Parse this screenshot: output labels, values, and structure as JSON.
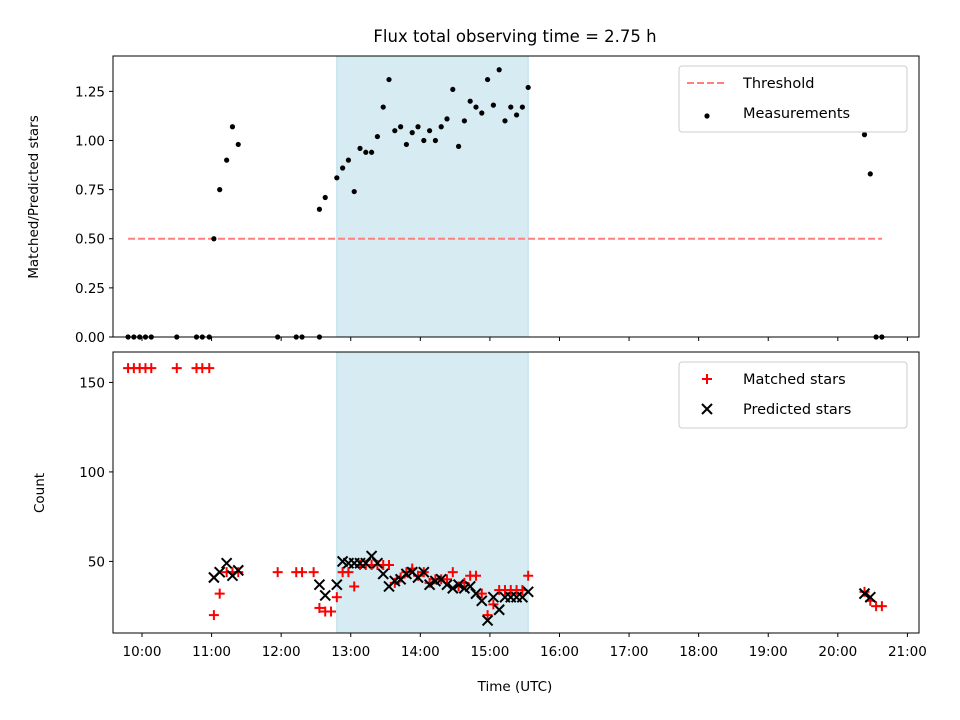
{
  "figure": {
    "title": "Flux total observing time = 2.75 h"
  },
  "chart_data": [
    {
      "type": "scatter",
      "panel": "top",
      "ylabel": "Matched/Predicted stars",
      "xlim": [
        "09:35",
        "21:10"
      ],
      "ylim": [
        0,
        1.43
      ],
      "yticks": [
        0.0,
        0.25,
        0.5,
        0.75,
        1.0,
        1.25
      ],
      "ytick_labels": [
        "0.00",
        "0.25",
        "0.50",
        "0.75",
        "1.00",
        "1.25"
      ],
      "highlight_span": [
        "12:48",
        "15:33"
      ],
      "highlight_color": "#add8e6",
      "threshold": {
        "value": 0.5,
        "x_range": [
          "09:48",
          "20:38"
        ],
        "color": "#ff7f7f",
        "label": "Threshold"
      },
      "legend": {
        "position": "top-right",
        "entries": [
          "Threshold",
          "Measurements"
        ]
      },
      "series": [
        {
          "name": "Measurements",
          "color": "#000000",
          "points": [
            [
              "09:48",
              0
            ],
            [
              "09:53",
              0
            ],
            [
              "09:58",
              0
            ],
            [
              "10:03",
              0
            ],
            [
              "10:08",
              0
            ],
            [
              "10:30",
              0
            ],
            [
              "10:47",
              0
            ],
            [
              "10:52",
              0
            ],
            [
              "10:58",
              0
            ],
            [
              "11:02",
              0.5
            ],
            [
              "11:07",
              0.75
            ],
            [
              "11:13",
              0.9
            ],
            [
              "11:18",
              1.07
            ],
            [
              "11:23",
              0.98
            ],
            [
              "11:57",
              0
            ],
            [
              "12:13",
              0
            ],
            [
              "12:18",
              0
            ],
            [
              "12:33",
              0
            ],
            [
              "12:33",
              0.65
            ],
            [
              "12:38",
              0.71
            ],
            [
              "12:48",
              0.81
            ],
            [
              "12:53",
              0.86
            ],
            [
              "12:58",
              0.9
            ],
            [
              "13:03",
              0.74
            ],
            [
              "13:08",
              0.96
            ],
            [
              "13:13",
              0.94
            ],
            [
              "13:18",
              0.94
            ],
            [
              "13:23",
              1.02
            ],
            [
              "13:28",
              1.17
            ],
            [
              "13:33",
              1.31
            ],
            [
              "13:38",
              1.05
            ],
            [
              "13:43",
              1.07
            ],
            [
              "13:48",
              0.98
            ],
            [
              "13:53",
              1.04
            ],
            [
              "13:58",
              1.07
            ],
            [
              "14:03",
              1.0
            ],
            [
              "14:08",
              1.05
            ],
            [
              "14:13",
              1.0
            ],
            [
              "14:18",
              1.07
            ],
            [
              "14:23",
              1.11
            ],
            [
              "14:28",
              1.26
            ],
            [
              "14:33",
              0.97
            ],
            [
              "14:38",
              1.1
            ],
            [
              "14:43",
              1.2
            ],
            [
              "14:48",
              1.17
            ],
            [
              "14:53",
              1.14
            ],
            [
              "14:58",
              1.31
            ],
            [
              "15:03",
              1.18
            ],
            [
              "15:08",
              1.36
            ],
            [
              "15:13",
              1.1
            ],
            [
              "15:18",
              1.17
            ],
            [
              "15:23",
              1.13
            ],
            [
              "15:28",
              1.17
            ],
            [
              "15:33",
              1.27
            ],
            [
              "20:23",
              1.03
            ],
            [
              "20:28",
              0.83
            ],
            [
              "20:33",
              0
            ],
            [
              "20:38",
              0
            ]
          ]
        }
      ]
    },
    {
      "type": "scatter",
      "panel": "bottom",
      "xlabel": "Time (UTC)",
      "ylabel": "Count",
      "xlim": [
        "09:35",
        "21:10"
      ],
      "ylim": [
        10,
        167
      ],
      "xticks": [
        "10:00",
        "11:00",
        "12:00",
        "13:00",
        "14:00",
        "15:00",
        "16:00",
        "17:00",
        "18:00",
        "19:00",
        "20:00",
        "21:00"
      ],
      "yticks": [
        50,
        100,
        150
      ],
      "ytick_labels": [
        "50",
        "100",
        "150"
      ],
      "highlight_span": [
        "12:48",
        "15:33"
      ],
      "highlight_color": "#add8e6",
      "legend": {
        "position": "top-right",
        "entries": [
          "Matched stars",
          "Predicted stars"
        ]
      },
      "series": [
        {
          "name": "Matched stars",
          "marker": "plus",
          "color": "#ff0000",
          "points": [
            [
              "09:48",
              158
            ],
            [
              "09:53",
              158
            ],
            [
              "09:58",
              158
            ],
            [
              "10:03",
              158
            ],
            [
              "10:08",
              158
            ],
            [
              "10:30",
              158
            ],
            [
              "10:47",
              158
            ],
            [
              "10:52",
              158
            ],
            [
              "10:58",
              158
            ],
            [
              "11:02",
              20
            ],
            [
              "11:07",
              32
            ],
            [
              "11:13",
              44
            ],
            [
              "11:18",
              44
            ],
            [
              "11:23",
              44
            ],
            [
              "11:57",
              44
            ],
            [
              "12:13",
              44
            ],
            [
              "12:18",
              44
            ],
            [
              "12:28",
              44
            ],
            [
              "12:33",
              24
            ],
            [
              "12:38",
              22
            ],
            [
              "12:43",
              22
            ],
            [
              "12:48",
              30
            ],
            [
              "12:53",
              44
            ],
            [
              "12:58",
              44
            ],
            [
              "13:03",
              36
            ],
            [
              "13:08",
              48
            ],
            [
              "13:13",
              48
            ],
            [
              "13:18",
              48
            ],
            [
              "13:23",
              48
            ],
            [
              "13:28",
              48
            ],
            [
              "13:33",
              48
            ],
            [
              "13:38",
              38
            ],
            [
              "13:43",
              41
            ],
            [
              "13:48",
              44
            ],
            [
              "13:53",
              46
            ],
            [
              "13:58",
              42
            ],
            [
              "14:03",
              44
            ],
            [
              "14:08",
              38
            ],
            [
              "14:13",
              40
            ],
            [
              "14:18",
              40
            ],
            [
              "14:23",
              40
            ],
            [
              "14:28",
              44
            ],
            [
              "14:33",
              36
            ],
            [
              "14:38",
              38
            ],
            [
              "14:43",
              42
            ],
            [
              "14:48",
              42
            ],
            [
              "14:53",
              32
            ],
            [
              "14:58",
              20
            ],
            [
              "15:03",
              26
            ],
            [
              "15:08",
              34
            ],
            [
              "15:13",
              34
            ],
            [
              "15:18",
              34
            ],
            [
              "15:23",
              34
            ],
            [
              "15:28",
              34
            ],
            [
              "15:33",
              42
            ],
            [
              "20:23",
              33
            ],
            [
              "20:28",
              28
            ],
            [
              "20:33",
              25
            ],
            [
              "20:38",
              25
            ]
          ]
        },
        {
          "name": "Predicted stars",
          "marker": "x",
          "color": "#000000",
          "points": [
            [
              "11:02",
              41
            ],
            [
              "11:07",
              44
            ],
            [
              "11:13",
              49
            ],
            [
              "11:18",
              42
            ],
            [
              "11:23",
              45
            ],
            [
              "12:33",
              37
            ],
            [
              "12:38",
              31
            ],
            [
              "12:48",
              37
            ],
            [
              "12:53",
              50
            ],
            [
              "12:58",
              49
            ],
            [
              "13:03",
              49
            ],
            [
              "13:08",
              49
            ],
            [
              "13:13",
              49
            ],
            [
              "13:18",
              53
            ],
            [
              "13:23",
              49
            ],
            [
              "13:28",
              43
            ],
            [
              "13:33",
              36
            ],
            [
              "13:38",
              39
            ],
            [
              "13:43",
              40
            ],
            [
              "13:48",
              43
            ],
            [
              "13:53",
              44
            ],
            [
              "13:58",
              41
            ],
            [
              "14:03",
              44
            ],
            [
              "14:08",
              37
            ],
            [
              "14:13",
              39
            ],
            [
              "14:18",
              40
            ],
            [
              "14:23",
              37
            ],
            [
              "14:28",
              35
            ],
            [
              "14:33",
              37
            ],
            [
              "14:38",
              35
            ],
            [
              "14:43",
              36
            ],
            [
              "14:48",
              32
            ],
            [
              "14:53",
              28
            ],
            [
              "14:58",
              17
            ],
            [
              "15:03",
              30
            ],
            [
              "15:08",
              23
            ],
            [
              "15:13",
              30
            ],
            [
              "15:18",
              30
            ],
            [
              "15:23",
              30
            ],
            [
              "15:28",
              30
            ],
            [
              "15:33",
              33
            ],
            [
              "20:23",
              32
            ],
            [
              "20:28",
              30
            ]
          ]
        }
      ]
    }
  ]
}
